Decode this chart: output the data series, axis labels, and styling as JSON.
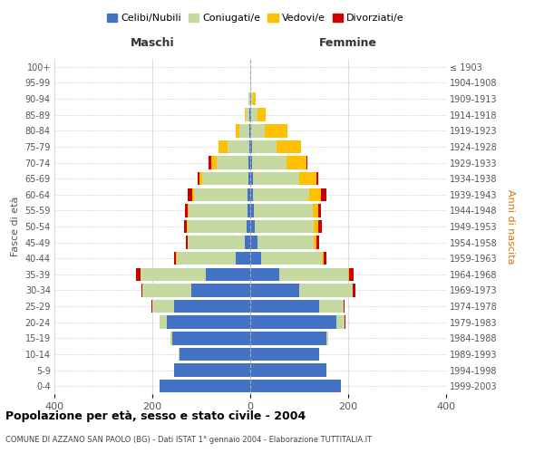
{
  "age_groups": [
    "0-4",
    "5-9",
    "10-14",
    "15-19",
    "20-24",
    "25-29",
    "30-34",
    "35-39",
    "40-44",
    "45-49",
    "50-54",
    "55-59",
    "60-64",
    "65-69",
    "70-74",
    "75-79",
    "80-84",
    "85-89",
    "90-94",
    "95-99",
    "100+"
  ],
  "birth_years": [
    "1999-2003",
    "1994-1998",
    "1989-1993",
    "1984-1988",
    "1979-1983",
    "1974-1978",
    "1969-1973",
    "1964-1968",
    "1959-1963",
    "1954-1958",
    "1949-1953",
    "1944-1948",
    "1939-1943",
    "1934-1938",
    "1929-1933",
    "1924-1928",
    "1919-1923",
    "1914-1918",
    "1909-1913",
    "1904-1908",
    "≤ 1903"
  ],
  "male_celibe": [
    185,
    155,
    145,
    160,
    170,
    155,
    120,
    90,
    30,
    12,
    8,
    6,
    5,
    4,
    3,
    2,
    2,
    1,
    0,
    0,
    0
  ],
  "male_coniugato": [
    0,
    0,
    1,
    3,
    15,
    45,
    100,
    135,
    120,
    115,
    120,
    120,
    110,
    95,
    65,
    45,
    20,
    8,
    3,
    0,
    0
  ],
  "male_vedovo": [
    0,
    0,
    0,
    0,
    0,
    0,
    0,
    0,
    1,
    1,
    2,
    2,
    4,
    5,
    12,
    18,
    8,
    2,
    0,
    0,
    0
  ],
  "male_divorziato": [
    0,
    0,
    0,
    0,
    1,
    1,
    3,
    8,
    4,
    4,
    5,
    6,
    8,
    3,
    5,
    0,
    0,
    0,
    0,
    0,
    0
  ],
  "female_celibe": [
    185,
    155,
    140,
    155,
    175,
    140,
    100,
    60,
    22,
    15,
    10,
    7,
    5,
    5,
    4,
    3,
    2,
    2,
    1,
    0,
    0
  ],
  "female_coniugato": [
    0,
    0,
    1,
    4,
    18,
    50,
    110,
    140,
    125,
    115,
    120,
    120,
    115,
    95,
    70,
    50,
    28,
    12,
    5,
    1,
    0
  ],
  "female_vedovo": [
    0,
    0,
    0,
    0,
    0,
    0,
    0,
    1,
    3,
    5,
    8,
    12,
    25,
    35,
    40,
    50,
    45,
    18,
    5,
    1,
    0
  ],
  "female_divorziato": [
    0,
    0,
    0,
    0,
    1,
    2,
    4,
    10,
    5,
    5,
    8,
    5,
    10,
    3,
    2,
    1,
    0,
    0,
    0,
    0,
    0
  ],
  "colors": {
    "celibe": "#4472c4",
    "coniugato": "#c5d9a0",
    "vedovo": "#ffc000",
    "divorziato": "#cc0000"
  },
  "title": "Popolazione per età, sesso e stato civile - 2004",
  "subtitle": "COMUNE DI AZZANO SAN PAOLO (BG) - Dati ISTAT 1° gennaio 2004 - Elaborazione TUTTITALIA.IT",
  "xlabel_left": "Maschi",
  "xlabel_right": "Femmine",
  "ylabel_left": "Fasce di età",
  "ylabel_right": "Anni di nascita",
  "xlim": 400,
  "bg_color": "#ffffff",
  "grid_color": "#cccccc"
}
